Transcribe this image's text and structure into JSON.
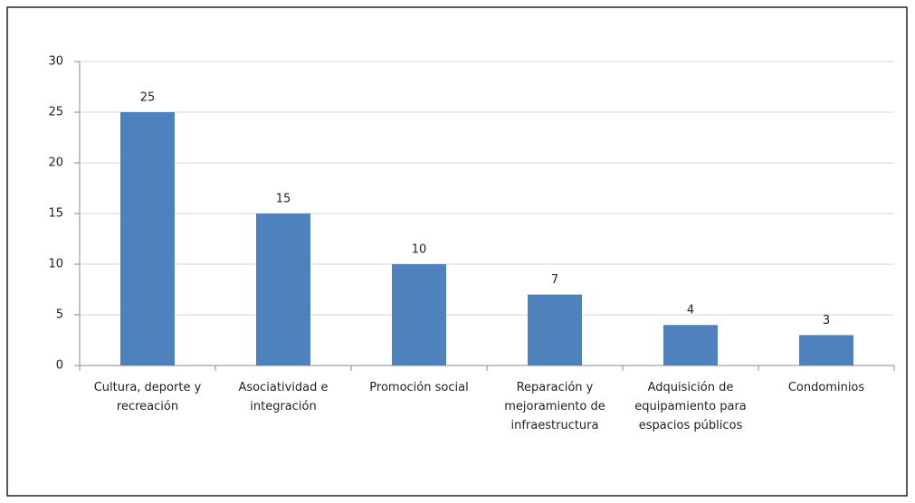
{
  "chart_data": {
    "type": "bar",
    "categories": [
      "Cultura, deporte y recreación",
      "Asociatividad e integración",
      "Promoción social",
      "Reparación y mejoramiento de infraestructura",
      "Adquisición de equipamiento para espacios públicos",
      "Condominios"
    ],
    "values": [
      25,
      15,
      10,
      7,
      4,
      3
    ],
    "color": "#4f81bd",
    "ylim": [
      0,
      30
    ],
    "yticks": [
      0,
      5,
      10,
      15,
      20,
      25,
      30
    ],
    "grid": true
  }
}
